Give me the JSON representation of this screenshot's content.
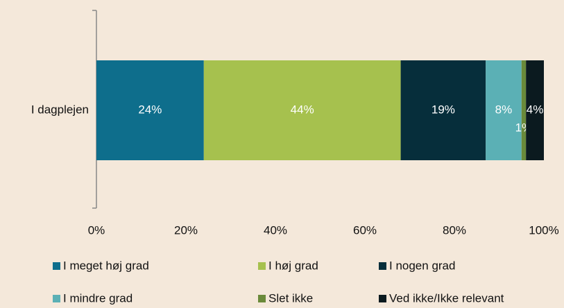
{
  "chart_data": {
    "type": "stacked-bar-horizontal",
    "categories": [
      "I dagplejen"
    ],
    "series": [
      {
        "name": "I meget høj grad",
        "color": "#0e6e8c",
        "values": [
          24
        ],
        "value_labels": [
          "24%"
        ]
      },
      {
        "name": "I høj grad",
        "color": "#a6c14e",
        "values": [
          44
        ],
        "value_labels": [
          "44%"
        ]
      },
      {
        "name": "I nogen grad",
        "color": "#062e3b",
        "values": [
          19
        ],
        "value_labels": [
          "19%"
        ]
      },
      {
        "name": "I mindre grad",
        "color": "#5bb0b5",
        "values": [
          8
        ],
        "value_labels": [
          "8%"
        ]
      },
      {
        "name": "Slet ikke",
        "color": "#6a8a3a",
        "values": [
          1
        ],
        "value_labels": [
          "1%"
        ]
      },
      {
        "name": "Ved ikke/Ikke relevant",
        "color": "#0b1a1f",
        "values": [
          4
        ],
        "value_labels": [
          "4%"
        ]
      }
    ],
    "xlim": [
      0,
      100
    ],
    "xticks": [
      {
        "value": 0,
        "label": "0%"
      },
      {
        "value": 20,
        "label": "20%"
      },
      {
        "value": 40,
        "label": "40%"
      },
      {
        "value": 60,
        "label": "60%"
      },
      {
        "value": 80,
        "label": "80%"
      },
      {
        "value": 100,
        "label": "100%"
      }
    ],
    "legend": "bottom"
  }
}
